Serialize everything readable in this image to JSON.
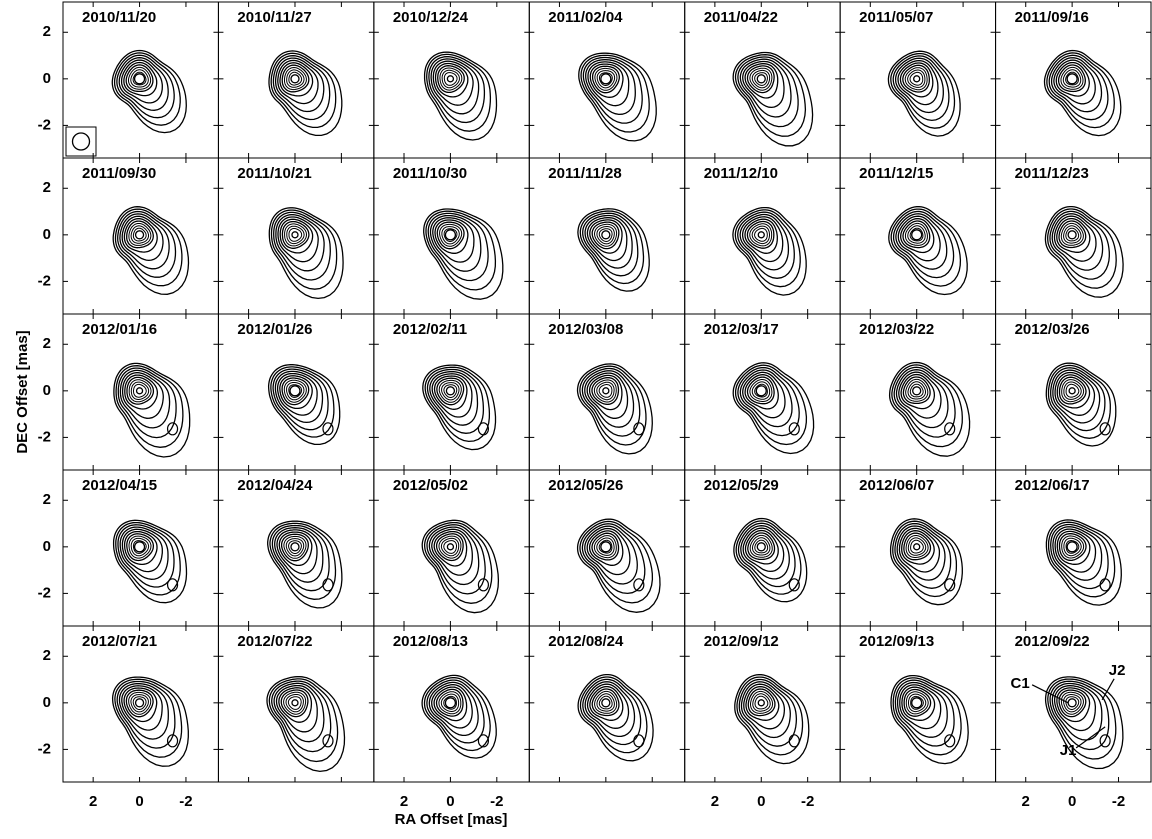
{
  "chart_data": {
    "type": "contour-grid",
    "xlabel": "RA Offset [mas]",
    "ylabel": "DEC Offset [mas]",
    "xlim": [
      3.3,
      -3.4
    ],
    "ylim": [
      -3.4,
      3.3
    ],
    "xticks": [
      2,
      0,
      -2
    ],
    "yticks": [
      2,
      0,
      -2
    ],
    "color": "#000000",
    "panels": [
      "2010/11/20",
      "2010/11/27",
      "2010/12/24",
      "2011/02/04",
      "2011/04/22",
      "2011/05/07",
      "2011/09/16",
      "2011/09/30",
      "2011/10/21",
      "2011/10/30",
      "2011/11/28",
      "2011/12/10",
      "2011/12/15",
      "2011/12/23",
      "2012/01/16",
      "2012/01/26",
      "2012/02/11",
      "2012/03/08",
      "2012/03/17",
      "2012/03/22",
      "2012/03/26",
      "2012/04/15",
      "2012/04/24",
      "2012/05/02",
      "2012/05/26",
      "2012/05/29",
      "2012/06/07",
      "2012/06/17",
      "2012/07/21",
      "2012/07/22",
      "2012/08/13",
      "2012/08/24",
      "2012/09/12",
      "2012/09/13",
      "2012/09/22"
    ],
    "annotations": [
      "C1",
      "J2",
      "J1"
    ]
  }
}
